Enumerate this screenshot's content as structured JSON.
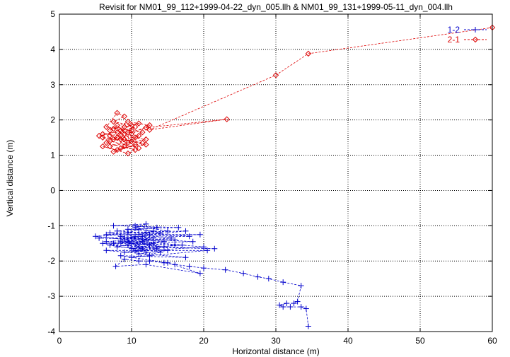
{
  "chart_data": {
    "type": "scatter",
    "title": "Revisit for NM01_99_112+1999-04-22_dyn_005.llh & NM01_99_131+1999-05-11_dyn_004.llh",
    "xlabel": "Horizontal distance (m)",
    "ylabel": "Vertical distance (m)",
    "xlim": [
      0,
      60
    ],
    "ylim": [
      -4,
      5
    ],
    "xticks": [
      "0",
      "10",
      "20",
      "30",
      "40",
      "50",
      "60"
    ],
    "yticks": [
      "-4",
      "-3",
      "-2",
      "-1",
      "0",
      "1",
      "2",
      "3",
      "4",
      "5"
    ],
    "grid": true,
    "legend_position": "top-right",
    "series": [
      {
        "name": "1-2",
        "color": "#0000cc",
        "marker": "plus",
        "line": "dashed",
        "points": [
          [
            34.5,
            -3.85
          ],
          [
            34.2,
            -3.35
          ],
          [
            33.5,
            -3.3
          ],
          [
            32.0,
            -3.3
          ],
          [
            31.0,
            -3.3
          ],
          [
            30.5,
            -3.25
          ],
          [
            31.5,
            -3.2
          ],
          [
            32.5,
            -3.2
          ],
          [
            33.0,
            -3.15
          ],
          [
            33.5,
            -2.7
          ],
          [
            31.0,
            -2.6
          ],
          [
            29.0,
            -2.5
          ],
          [
            27.5,
            -2.45
          ],
          [
            25.5,
            -2.35
          ],
          [
            23.0,
            -2.25
          ],
          [
            20.0,
            -2.2
          ],
          [
            18.0,
            -2.15
          ],
          [
            16.0,
            -2.1
          ],
          [
            14.5,
            -2.05
          ],
          [
            12.5,
            -2.0
          ],
          [
            11.0,
            -2.0
          ],
          [
            9.0,
            -1.95
          ],
          [
            7.8,
            -2.15
          ],
          [
            12.0,
            -2.1
          ],
          [
            19.5,
            -2.35
          ],
          [
            15.0,
            -2.05
          ],
          [
            8.5,
            -1.85
          ],
          [
            17.5,
            -1.9
          ],
          [
            6.5,
            -1.7
          ],
          [
            20.5,
            -1.7
          ],
          [
            12.5,
            -1.85
          ],
          [
            10.0,
            -1.9
          ],
          [
            14.0,
            -1.75
          ],
          [
            7.0,
            -1.55
          ],
          [
            21.5,
            -1.65
          ],
          [
            11.0,
            -1.6
          ],
          [
            9.5,
            -1.45
          ],
          [
            16.0,
            -1.4
          ],
          [
            5.5,
            -1.35
          ],
          [
            18.0,
            -1.3
          ],
          [
            12.0,
            -1.2
          ],
          [
            8.0,
            -1.15
          ],
          [
            13.5,
            -1.05
          ],
          [
            10.5,
            -1.0
          ],
          [
            15.0,
            -1.15
          ],
          [
            6.5,
            -1.25
          ],
          [
            19.5,
            -1.25
          ],
          [
            11.5,
            -1.3
          ],
          [
            9.0,
            -1.35
          ],
          [
            14.5,
            -1.45
          ],
          [
            7.5,
            -1.5
          ],
          [
            17.0,
            -1.55
          ],
          [
            10.0,
            -1.65
          ],
          [
            12.5,
            -1.55
          ],
          [
            8.5,
            -1.45
          ],
          [
            15.5,
            -1.35
          ],
          [
            11.0,
            -1.25
          ],
          [
            13.0,
            -1.15
          ],
          [
            9.5,
            -1.1
          ],
          [
            16.5,
            -1.05
          ],
          [
            7.5,
            -1.0
          ],
          [
            12.0,
            -0.95
          ],
          [
            10.5,
            -1.05
          ],
          [
            14.0,
            -1.2
          ],
          [
            5.0,
            -1.3
          ],
          [
            11.5,
            -1.45
          ],
          [
            20.0,
            -1.6
          ],
          [
            9.0,
            -1.75
          ],
          [
            13.5,
            -1.65
          ],
          [
            6.0,
            -1.5
          ],
          [
            18.5,
            -1.45
          ],
          [
            10.0,
            -1.35
          ],
          [
            12.0,
            -1.4
          ],
          [
            8.0,
            -1.6
          ],
          [
            15.0,
            -1.7
          ],
          [
            11.0,
            -1.8
          ],
          [
            9.5,
            -1.55
          ],
          [
            13.0,
            -1.5
          ],
          [
            10.5,
            -1.3
          ],
          [
            7.0,
            -1.2
          ],
          [
            17.5,
            -1.15
          ],
          [
            12.5,
            -1.25
          ],
          [
            9.0,
            -1.4
          ],
          [
            14.5,
            -1.6
          ],
          [
            10.0,
            -1.5
          ],
          [
            11.5,
            -1.65
          ],
          [
            8.5,
            -1.3
          ],
          [
            13.0,
            -1.35
          ],
          [
            6.5,
            -1.45
          ],
          [
            16.0,
            -1.55
          ],
          [
            10.5,
            -1.7
          ],
          [
            12.0,
            -1.75
          ],
          [
            9.5,
            -1.2
          ],
          [
            11.0,
            -1.1
          ]
        ]
      },
      {
        "name": "2-1",
        "color": "#dd0000",
        "marker": "diamond",
        "line": "dashed",
        "points": [
          [
            60.0,
            4.62
          ],
          [
            34.5,
            3.88
          ],
          [
            30.0,
            3.27
          ],
          [
            12.5,
            1.72
          ],
          [
            23.2,
            2.02
          ],
          [
            12.0,
            1.78
          ],
          [
            9.0,
            1.6
          ],
          [
            7.5,
            1.45
          ],
          [
            10.5,
            1.3
          ],
          [
            8.0,
            1.15
          ],
          [
            6.0,
            1.25
          ],
          [
            9.5,
            1.05
          ],
          [
            11.0,
            1.2
          ],
          [
            7.0,
            1.4
          ],
          [
            5.5,
            1.55
          ],
          [
            8.5,
            1.7
          ],
          [
            10.0,
            1.85
          ],
          [
            7.5,
            1.95
          ],
          [
            9.0,
            2.1
          ],
          [
            8.0,
            2.2
          ],
          [
            6.5,
            1.8
          ],
          [
            11.5,
            1.65
          ],
          [
            10.5,
            1.5
          ],
          [
            7.0,
            1.25
          ],
          [
            9.5,
            1.35
          ],
          [
            12.0,
            1.45
          ],
          [
            8.5,
            1.55
          ],
          [
            6.0,
            1.6
          ],
          [
            10.0,
            1.7
          ],
          [
            7.5,
            1.75
          ],
          [
            11.0,
            1.9
          ],
          [
            9.0,
            1.8
          ],
          [
            8.0,
            1.5
          ],
          [
            6.5,
            1.35
          ],
          [
            10.5,
            1.15
          ],
          [
            9.0,
            1.25
          ],
          [
            7.5,
            1.1
          ],
          [
            11.5,
            1.35
          ],
          [
            8.5,
            1.45
          ],
          [
            10.0,
            1.6
          ],
          [
            12.5,
            1.85
          ],
          [
            9.5,
            1.95
          ],
          [
            7.0,
            1.7
          ],
          [
            8.0,
            1.85
          ],
          [
            10.0,
            1.4
          ],
          [
            6.0,
            1.5
          ],
          [
            9.0,
            1.45
          ],
          [
            11.0,
            1.55
          ],
          [
            8.5,
            1.2
          ],
          [
            12.0,
            1.3
          ],
          [
            7.0,
            1.55
          ],
          [
            9.5,
            1.65
          ],
          [
            10.5,
            1.8
          ],
          [
            8.0,
            1.65
          ]
        ]
      }
    ]
  }
}
